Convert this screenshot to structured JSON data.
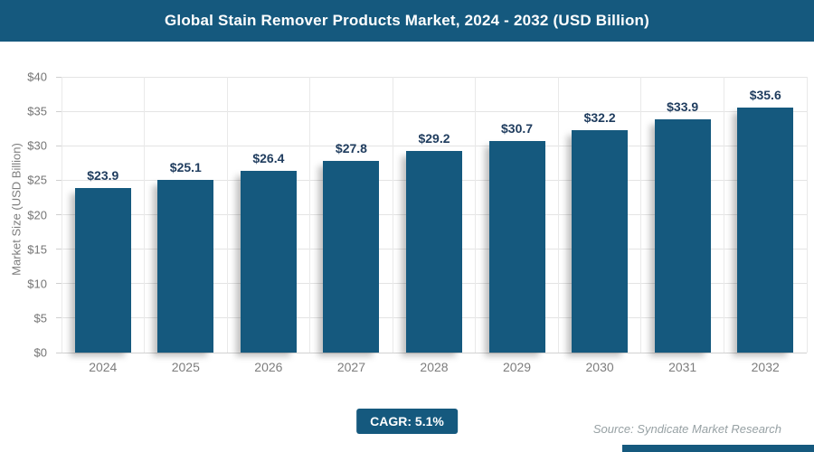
{
  "header": {
    "title": "Global Stain Remover Products Market, 2024 - 2032 (USD Billion)"
  },
  "chart_data": {
    "type": "bar",
    "title": "Global Stain Remover Products Market, 2024 - 2032 (USD Billion)",
    "categories": [
      "2024",
      "2025",
      "2026",
      "2027",
      "2028",
      "2029",
      "2030",
      "2031",
      "2032"
    ],
    "values": [
      23.9,
      25.1,
      26.4,
      27.8,
      29.2,
      30.7,
      32.2,
      33.9,
      35.6
    ],
    "value_labels": [
      "$23.9",
      "$25.1",
      "$26.4",
      "$27.8",
      "$29.2",
      "$30.7",
      "$32.2",
      "$33.9",
      "$35.6"
    ],
    "xlabel": "",
    "ylabel": "Market Size (USD Billion)",
    "ylim": [
      0,
      40
    ],
    "ytick_step": 5,
    "yticks": [
      "$0",
      "$5",
      "$10",
      "$15",
      "$20",
      "$25",
      "$30",
      "$35",
      "$40"
    ],
    "grid": true,
    "legend": "none"
  },
  "footer": {
    "cagr_label": "CAGR: 5.1%",
    "source": "Source: Syndicate Market Research"
  },
  "colors": {
    "brand_navy": "#15597E",
    "bar_fill": "#15597E",
    "value_label": "#1f3c5e",
    "axis_text": "#757575",
    "gridline": "#e4e4e4",
    "source_text": "#97a1a4"
  }
}
